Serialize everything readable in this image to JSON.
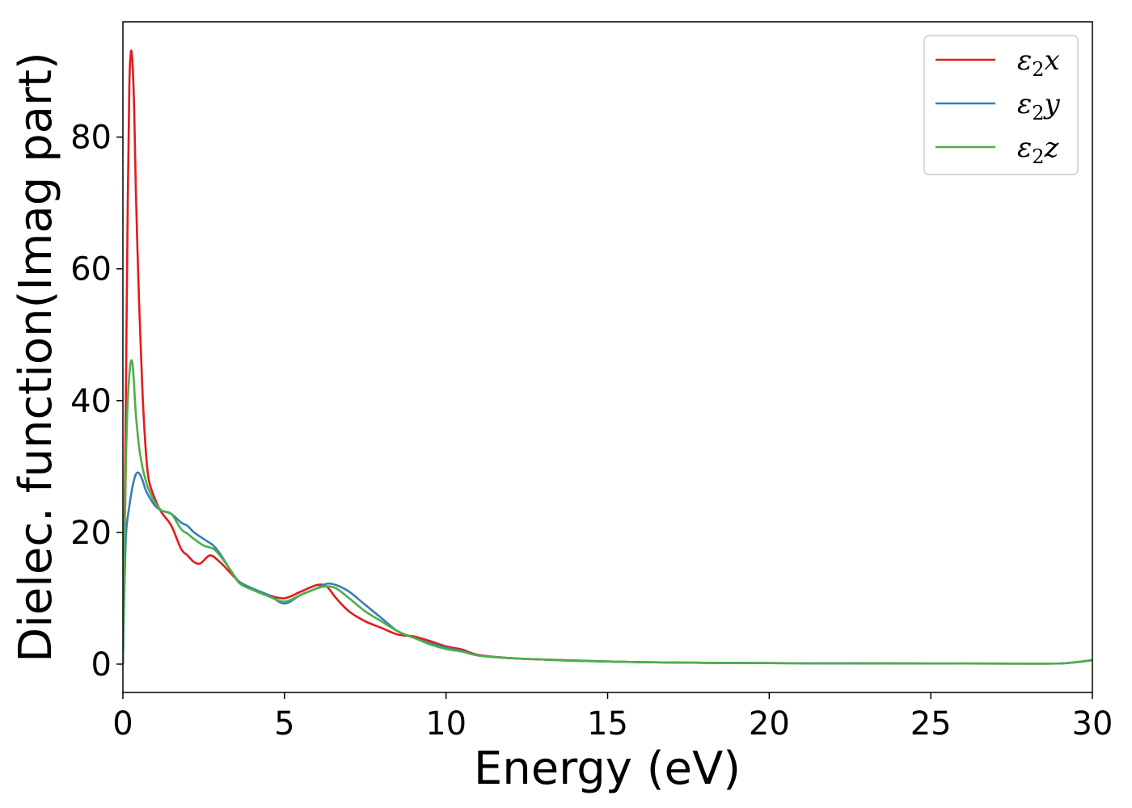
{
  "chart_data": {
    "type": "line",
    "title": "",
    "xlabel": "Energy (eV)",
    "ylabel": "Dielec. function(Imag part)",
    "xlim": [
      0,
      30
    ],
    "ylim": [
      -4.3,
      97.5
    ],
    "xticks": [
      0,
      5,
      10,
      15,
      20,
      25,
      30
    ],
    "yticks": [
      0,
      20,
      40,
      60,
      80
    ],
    "grid": false,
    "legend_position": "top-right",
    "series": [
      {
        "name": "ε2x",
        "legend_main": "ε",
        "legend_sub": "2",
        "legend_suffix": "x",
        "color": "#e41a1c",
        "x": [
          0,
          0.05,
          0.1,
          0.15,
          0.2,
          0.25,
          0.3,
          0.35,
          0.4,
          0.5,
          0.6,
          0.7,
          0.8,
          1.0,
          1.2,
          1.5,
          1.8,
          2.0,
          2.2,
          2.4,
          2.7,
          3.0,
          3.3,
          3.6,
          4.0,
          4.5,
          5.0,
          5.5,
          6.0,
          6.3,
          6.6,
          7.0,
          7.5,
          8.0,
          8.5,
          9.0,
          9.5,
          10.0,
          10.5,
          11.0,
          12.0,
          13.0,
          14.0,
          15.0,
          16.0,
          17.0,
          18.0,
          20.0,
          22.0,
          25.0,
          28.0,
          29.0,
          29.5,
          30.0
        ],
        "y": [
          0,
          20,
          45,
          70,
          88,
          93,
          91,
          84,
          72,
          55,
          42,
          33,
          28,
          25,
          23,
          21,
          17.5,
          16.5,
          15.5,
          15.3,
          16.5,
          15.5,
          14,
          12.5,
          11.5,
          10.5,
          10,
          11,
          12,
          11.8,
          10,
          8,
          6.5,
          5.5,
          4.5,
          4.2,
          3.5,
          2.7,
          2.2,
          1.4,
          0.9,
          0.7,
          0.55,
          0.4,
          0.3,
          0.25,
          0.2,
          0.15,
          0.12,
          0.1,
          0.08,
          0.1,
          0.3,
          0.6
        ]
      },
      {
        "name": "ε2y",
        "legend_main": "ε",
        "legend_sub": "2",
        "legend_suffix": "y",
        "color": "#377eb8",
        "x": [
          0,
          0.05,
          0.1,
          0.2,
          0.3,
          0.4,
          0.5,
          0.6,
          0.7,
          0.8,
          1.0,
          1.2,
          1.5,
          1.8,
          2.0,
          2.2,
          2.5,
          2.8,
          3.0,
          3.3,
          3.6,
          4.0,
          4.5,
          5.0,
          5.5,
          6.0,
          6.3,
          6.6,
          7.0,
          7.5,
          8.0,
          8.5,
          9.0,
          9.5,
          10.0,
          10.5,
          11.0,
          12.0,
          13.0,
          14.0,
          15.0,
          16.0,
          17.0,
          18.0,
          20.0,
          22.0,
          25.0,
          28.0,
          29.0,
          29.5,
          30.0
        ],
        "y": [
          0,
          12,
          20,
          24,
          27,
          28.8,
          29,
          28,
          26.5,
          25.5,
          24,
          23.3,
          22.8,
          21.5,
          21,
          20,
          19,
          18,
          16.8,
          14.5,
          12.5,
          11.5,
          10.5,
          9.2,
          10.5,
          11.5,
          12.2,
          12,
          11,
          9,
          7,
          5,
          4,
          3.2,
          2.5,
          2,
          1.3,
          0.9,
          0.7,
          0.5,
          0.4,
          0.3,
          0.25,
          0.2,
          0.15,
          0.12,
          0.1,
          0.08,
          0.1,
          0.3,
          0.6
        ]
      },
      {
        "name": "ε2z",
        "legend_main": "ε",
        "legend_sub": "2",
        "legend_suffix": "z",
        "color": "#4daf4a",
        "x": [
          0,
          0.05,
          0.1,
          0.15,
          0.2,
          0.25,
          0.3,
          0.35,
          0.4,
          0.5,
          0.6,
          0.7,
          0.8,
          1.0,
          1.2,
          1.5,
          1.8,
          2.0,
          2.2,
          2.5,
          2.8,
          3.0,
          3.3,
          3.6,
          4.0,
          4.5,
          5.0,
          5.5,
          6.0,
          6.3,
          6.6,
          7.0,
          7.5,
          8.0,
          8.5,
          9.0,
          9.5,
          10.0,
          10.5,
          11.0,
          12.0,
          13.0,
          14.0,
          15.0,
          16.0,
          17.0,
          18.0,
          20.0,
          22.0,
          25.0,
          28.0,
          29.0,
          29.5,
          30.0
        ],
        "y": [
          0,
          18,
          32,
          40,
          44,
          46,
          45.5,
          42,
          38,
          33,
          30,
          28,
          26.5,
          24.5,
          23.3,
          22.8,
          20.5,
          19.8,
          19,
          18,
          17.5,
          16.5,
          14.5,
          12.3,
          11.3,
          10.3,
          9.5,
          10.5,
          11.5,
          11.8,
          11.5,
          10,
          8,
          6.5,
          5,
          4,
          3,
          2.3,
          1.9,
          1.3,
          0.9,
          0.7,
          0.5,
          0.4,
          0.3,
          0.25,
          0.2,
          0.15,
          0.12,
          0.1,
          0.08,
          0.1,
          0.3,
          0.6
        ]
      }
    ]
  }
}
